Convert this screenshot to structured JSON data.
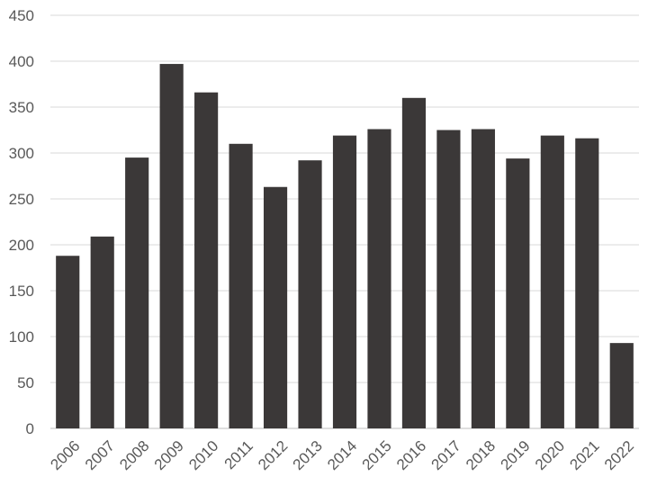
{
  "colors": {
    "bar": "#3b3838",
    "gridline": "#d9d9d9",
    "tick_text": "#595959"
  },
  "chart_data": {
    "type": "bar",
    "title": "",
    "xlabel": "",
    "ylabel": "",
    "categories": [
      "2006",
      "2007",
      "2008",
      "2009",
      "2010",
      "2011",
      "2012",
      "2013",
      "2014",
      "2015",
      "2016",
      "2017",
      "2018",
      "2019",
      "2020",
      "2021",
      "2022"
    ],
    "values": [
      188,
      209,
      295,
      397,
      366,
      310,
      263,
      292,
      319,
      326,
      360,
      325,
      326,
      294,
      319,
      316,
      93
    ],
    "ylim": [
      0,
      450
    ],
    "yticks": [
      "0",
      "50",
      "100",
      "150",
      "200",
      "250",
      "300",
      "350",
      "400",
      "450"
    ],
    "grid": true,
    "legend": "none"
  }
}
